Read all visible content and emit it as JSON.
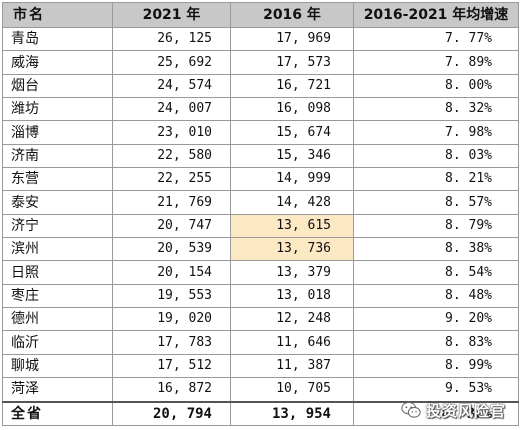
{
  "table": {
    "headers": {
      "city": "市名",
      "y2021": "2021 年",
      "y2016": "2016 年",
      "rate": "2016-2021 年均增速"
    },
    "rows": [
      {
        "city": "青岛",
        "v2021": "26, 125",
        "v2016": "17, 969",
        "rate": "7. 77%",
        "highlight": false
      },
      {
        "city": "威海",
        "v2021": "25, 692",
        "v2016": "17, 573",
        "rate": "7. 89%",
        "highlight": false
      },
      {
        "city": "烟台",
        "v2021": "24, 574",
        "v2016": "16, 721",
        "rate": "8. 00%",
        "highlight": false
      },
      {
        "city": "潍坊",
        "v2021": "24, 007",
        "v2016": "16, 098",
        "rate": "8. 32%",
        "highlight": false
      },
      {
        "city": "淄博",
        "v2021": "23, 010",
        "v2016": "15, 674",
        "rate": "7. 98%",
        "highlight": false
      },
      {
        "city": "济南",
        "v2021": "22, 580",
        "v2016": "15, 346",
        "rate": "8. 03%",
        "highlight": false
      },
      {
        "city": "东营",
        "v2021": "22, 255",
        "v2016": "14, 999",
        "rate": "8. 21%",
        "highlight": false
      },
      {
        "city": "泰安",
        "v2021": "21, 769",
        "v2016": "14, 428",
        "rate": "8. 57%",
        "highlight": false
      },
      {
        "city": "济宁",
        "v2021": "20, 747",
        "v2016": "13, 615",
        "rate": "8. 79%",
        "highlight": true
      },
      {
        "city": "滨州",
        "v2021": "20, 539",
        "v2016": "13, 736",
        "rate": "8. 38%",
        "highlight": true
      },
      {
        "city": "日照",
        "v2021": "20, 154",
        "v2016": "13, 379",
        "rate": "8. 54%",
        "highlight": false
      },
      {
        "city": "枣庄",
        "v2021": "19, 553",
        "v2016": "13, 018",
        "rate": "8. 48%",
        "highlight": false
      },
      {
        "city": "德州",
        "v2021": "19, 020",
        "v2016": "12, 248",
        "rate": "9. 20%",
        "highlight": false
      },
      {
        "city": "临沂",
        "v2021": "17, 783",
        "v2016": "11, 646",
        "rate": "8. 83%",
        "highlight": false
      },
      {
        "city": "聊城",
        "v2021": "17, 512",
        "v2016": "11, 387",
        "rate": "8. 99%",
        "highlight": false
      },
      {
        "city": "菏泽",
        "v2021": "16, 872",
        "v2016": "10, 705",
        "rate": "9. 53%",
        "highlight": false
      }
    ],
    "total": {
      "city": "全省",
      "v2021": "20, 794",
      "v2016": "13, 954",
      "rate": "8. 30%"
    }
  },
  "colors": {
    "header_bg": "#c8c8c8",
    "highlight_bg": "#fde8c4",
    "grid": "#9a9a9a"
  },
  "watermark": {
    "text": "投资风险官",
    "icon": "wechat-icon"
  }
}
